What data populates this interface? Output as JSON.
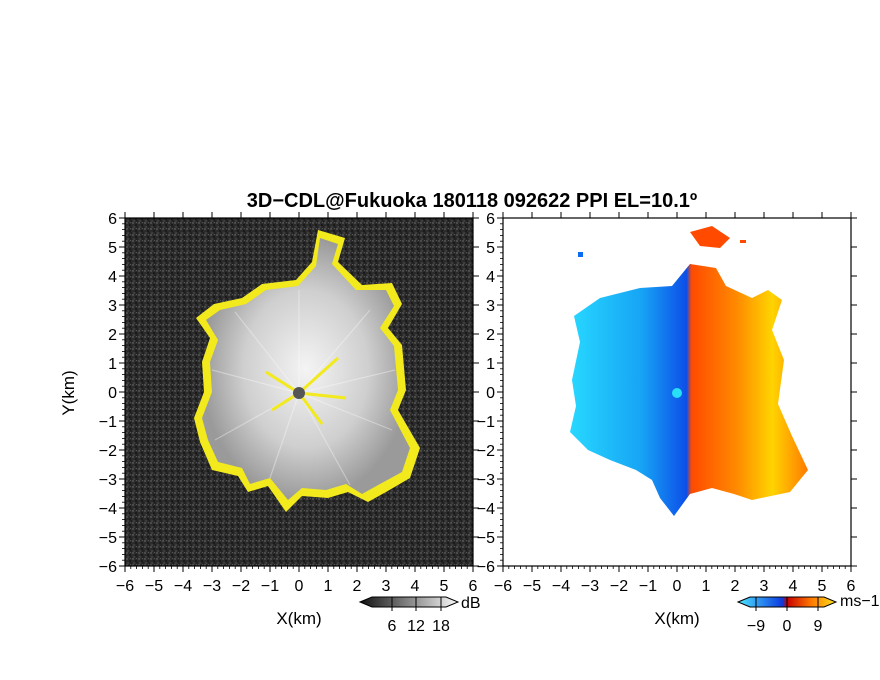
{
  "title": "3D−CDL@Fukuoka 180118 092622 PPI EL=10.1º",
  "left_panel": {
    "xlabel": "X(km)",
    "ylabel": "Y(km)",
    "xticks": [
      "−6",
      "−5",
      "−4",
      "−3",
      "−2",
      "−1",
      "0",
      "1",
      "2",
      "3",
      "4",
      "5",
      "6"
    ],
    "yticks": [
      "6",
      "5",
      "4",
      "3",
      "2",
      "1",
      "0",
      "−1",
      "−2",
      "−3",
      "−4",
      "−5",
      "−6"
    ],
    "colorbar": {
      "unit": "dB",
      "ticks": [
        "6",
        "12",
        "18"
      ]
    }
  },
  "right_panel": {
    "xlabel": "X(km)",
    "xticks": [
      "−6",
      "−5",
      "−4",
      "−3",
      "−2",
      "−1",
      "0",
      "1",
      "2",
      "3",
      "4",
      "5",
      "6"
    ],
    "yticks": [
      "6",
      "5",
      "4",
      "3",
      "2",
      "1",
      "0",
      "−1",
      "−2",
      "−3",
      "−4",
      "−5",
      "−6"
    ],
    "colorbar": {
      "unit": "ms−1",
      "ticks": [
        "−9",
        "0",
        "9"
      ]
    }
  },
  "chart_data": {
    "type": "heatmap",
    "panels": [
      "SNR",
      "radial velocity"
    ],
    "xlim": [
      -6,
      6
    ],
    "ylim": [
      -6,
      6
    ],
    "snr_colorbar_range": [
      0,
      21
    ],
    "velocity_colorbar_range": [
      -12,
      12
    ],
    "colors": {
      "echo_edge": "#f7ef1a",
      "approaching": "#0a6cf0",
      "receding": "#ff5a00"
    }
  }
}
